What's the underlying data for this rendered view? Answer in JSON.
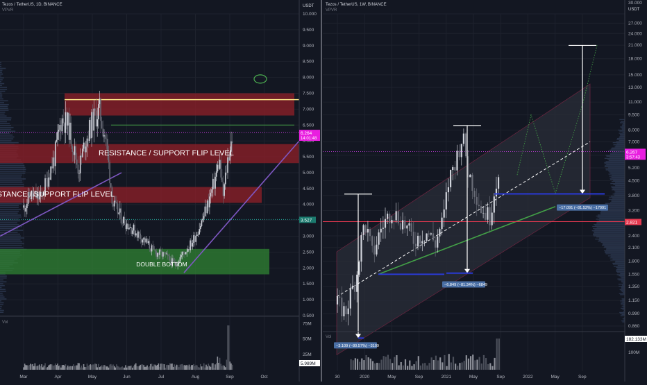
{
  "colors": {
    "bg": "#131722",
    "grid": "#1e222d",
    "up": "#d1d4dc",
    "down": "#6a6d78",
    "red_zone": "#8a1f28",
    "green_zone": "#2e7d32",
    "purple": "#7e57c2",
    "magenta": "#e91e63",
    "yellow": "#ffeb8a",
    "blue": "#2a3ad6",
    "teal": "#26a69a",
    "price_tag": "#e040fb",
    "label_box": "#4a6fa5"
  },
  "left": {
    "title": "Tezos / TetherUS, 1D, BINANCE",
    "indicator": "VPVR",
    "currency": "USDT",
    "vol_label": "Vol",
    "price_tag": "6.264",
    "price_tag_sub": "14:01:48",
    "level_tag": "3.527",
    "vol_tag": "5.989M",
    "labels": {
      "flip1": "RESISTANCE / SUPPORT FLIP LEVEL",
      "flip2": "RESISTANCE / SUPPORT FLIP LEVEL",
      "double_bottom": "DOUBLE BOTTOM"
    },
    "y_ticks": [
      "10.000",
      "9.500",
      "9.000",
      "8.500",
      "8.000",
      "7.500",
      "7.000",
      "6.500",
      "6.000",
      "5.500",
      "5.000",
      "4.500",
      "4.000",
      "3.500",
      "3.000",
      "2.500",
      "2.000",
      "1.500",
      "1.000",
      "0.500"
    ],
    "vol_ticks": [
      "75M",
      "50M",
      "25M"
    ],
    "x_ticks": [
      "Mar",
      "Apr",
      "May",
      "Jun",
      "Jul",
      "Aug",
      "Sep",
      "Oct"
    ]
  },
  "right": {
    "title": "Tezos / TetherUS, 1W, BINANCE",
    "indicator": "VPVR",
    "currency": "USDT",
    "vol_label": "Vol",
    "price_tag": "6.267",
    "price_tag_sub": "3:57:43",
    "level_tag": "2.821",
    "vol_tag": "182.133M",
    "y_ticks": [
      "30.000",
      "27.000",
      "24.000",
      "21.000",
      "18.000",
      "15.000",
      "13.000",
      "11.000",
      "9.500",
      "8.000",
      "7.000",
      "6.000",
      "5.200",
      "4.500",
      "3.800",
      "3.200",
      "2.821",
      "2.400",
      "2.100",
      "1.800",
      "1.550",
      "1.350",
      "1.150",
      "0.990",
      "0.860"
    ],
    "vol_ticks": [
      "100M"
    ],
    "x_ticks": [
      "30",
      "2020",
      "May",
      "Sep",
      "2021",
      "May",
      "Sep",
      "2022",
      "May",
      "Sep"
    ],
    "measures": [
      {
        "text": "−3.109 (−80.57%) −3109"
      },
      {
        "text": "−6.849 (−81.34%) −6849"
      },
      {
        "text": "−17.091 (−81.52%) −17091"
      }
    ]
  },
  "chart_data": [
    {
      "type": "candlestick",
      "title": "Tezos / TetherUS, 1D, BINANCE",
      "ylabel": "USDT",
      "ylim": [
        0.5,
        10.0
      ],
      "x": [
        "Mar",
        "Apr",
        "May",
        "Jun",
        "Jul",
        "Aug",
        "Sep",
        "Oct"
      ],
      "close_path": [
        [
          0,
          3.9
        ],
        [
          0.2,
          4.3
        ],
        [
          0.5,
          4.2
        ],
        [
          0.9,
          5.5
        ],
        [
          1.1,
          6.7
        ],
        [
          1.3,
          6.5
        ],
        [
          1.6,
          5.1
        ],
        [
          1.8,
          6.0
        ],
        [
          2.0,
          6.6
        ],
        [
          2.2,
          7.0
        ],
        [
          2.4,
          6.0
        ],
        [
          2.6,
          4.0
        ],
        [
          2.9,
          3.5
        ],
        [
          3.2,
          3.2
        ],
        [
          3.5,
          2.9
        ],
        [
          3.8,
          2.5
        ],
        [
          4.1,
          2.4
        ],
        [
          4.4,
          2.1
        ],
        [
          4.6,
          2.4
        ],
        [
          4.9,
          2.8
        ],
        [
          5.2,
          3.5
        ],
        [
          5.5,
          4.5
        ],
        [
          5.7,
          5.4
        ],
        [
          5.8,
          4.2
        ],
        [
          5.95,
          5.5
        ],
        [
          6.1,
          6.26
        ]
      ],
      "current_price": 6.264,
      "levels": {
        "resistance_yellow": 7.3,
        "green_line": 6.5,
        "teal_dotted": 3.527
      },
      "zones": [
        {
          "label": "",
          "from": 6.8,
          "to": 7.5
        },
        {
          "label": "RESISTANCE / SUPPORT FLIP LEVEL",
          "from": 5.3,
          "to": 5.9
        },
        {
          "label": "RESISTANCE / SUPPORT FLIP LEVEL",
          "from": 4.05,
          "to": 4.55
        },
        {
          "label": "DOUBLE BOTTOM",
          "from": 1.8,
          "to": 2.6
        }
      ],
      "vol_ylim": [
        0,
        80
      ]
    },
    {
      "type": "candlestick",
      "title": "Tezos / TetherUS, 1W, BINANCE",
      "ylabel": "USDT",
      "scale": "log",
      "ylim": [
        0.86,
        30.0
      ],
      "x": [
        "30",
        "2020",
        "May",
        "Sep",
        "2021",
        "May",
        "Sep",
        "2022",
        "May",
        "Sep"
      ],
      "close_path": [
        [
          0,
          1.1
        ],
        [
          0.3,
          1.0
        ],
        [
          0.7,
          1.5
        ],
        [
          1.0,
          2.8
        ],
        [
          1.3,
          1.9
        ],
        [
          1.6,
          2.6
        ],
        [
          2.0,
          3.2
        ],
        [
          2.4,
          2.8
        ],
        [
          2.8,
          2.3
        ],
        [
          3.3,
          2.5
        ],
        [
          3.6,
          2.2
        ],
        [
          3.9,
          2.9
        ],
        [
          4.1,
          4.5
        ],
        [
          4.4,
          6.0
        ],
        [
          4.6,
          7.5
        ],
        [
          4.8,
          5.0
        ],
        [
          5.0,
          4.2
        ],
        [
          5.3,
          3.2
        ],
        [
          5.6,
          3.0
        ],
        [
          5.9,
          4.8
        ],
        [
          6.0,
          6.27
        ]
      ],
      "current_price": 6.267,
      "levels": {
        "magenta": 2.821
      },
      "measures": [
        {
          "from": 3.86,
          "to": 0.75,
          "text": "−3.109 (−80.57%) −3109"
        },
        {
          "from": 8.42,
          "to": 1.57,
          "text": "−6.849 (−81.34%) −6849"
        },
        {
          "from": 20.96,
          "to": 3.87,
          "text": "−17.091 (−81.52%) −17091"
        }
      ]
    }
  ]
}
